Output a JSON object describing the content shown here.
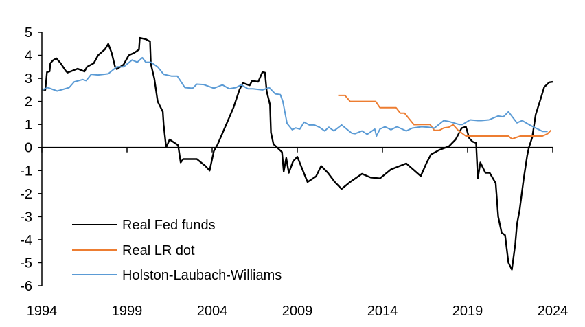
{
  "chart_data": {
    "type": "line",
    "title": "",
    "xlabel": "",
    "ylabel": "",
    "xlim": [
      1994,
      2024
    ],
    "ylim": [
      -6,
      5
    ],
    "x_ticks": [
      "1994",
      "1999",
      "2004",
      "2009",
      "2014",
      "2019",
      "2024"
    ],
    "y_ticks": [
      "5",
      "4",
      "3",
      "2",
      "1",
      "0",
      "-1",
      "-2",
      "-3",
      "-4",
      "-5",
      "-6"
    ],
    "grid": false,
    "legend_position": "bottom-left",
    "series": [
      {
        "name": "Real Fed funds",
        "color": "#000000",
        "points": [
          [
            1994.0,
            2.53
          ],
          [
            1994.2,
            2.5
          ],
          [
            1994.3,
            3.27
          ],
          [
            1994.45,
            3.3
          ],
          [
            1994.5,
            3.66
          ],
          [
            1994.65,
            3.78
          ],
          [
            1994.85,
            3.87
          ],
          [
            1995.1,
            3.66
          ],
          [
            1995.4,
            3.33
          ],
          [
            1995.5,
            3.25
          ],
          [
            1996.1,
            3.42
          ],
          [
            1996.5,
            3.3
          ],
          [
            1996.65,
            3.5
          ],
          [
            1997.05,
            3.66
          ],
          [
            1997.3,
            4.0
          ],
          [
            1997.7,
            4.26
          ],
          [
            1997.9,
            4.5
          ],
          [
            1998.1,
            4.1
          ],
          [
            1998.3,
            3.5
          ],
          [
            1998.4,
            3.4
          ],
          [
            1998.8,
            3.6
          ],
          [
            1999.1,
            4.0
          ],
          [
            1999.4,
            4.1
          ],
          [
            1999.7,
            4.25
          ],
          [
            1999.75,
            4.76
          ],
          [
            2000.1,
            4.7
          ],
          [
            2000.35,
            4.6
          ],
          [
            2000.4,
            3.63
          ],
          [
            2000.6,
            3.0
          ],
          [
            2000.8,
            2.0
          ],
          [
            2001.1,
            1.55
          ],
          [
            2001.15,
            1.0
          ],
          [
            2001.3,
            0.0
          ],
          [
            2001.5,
            0.35
          ],
          [
            2002.0,
            0.1
          ],
          [
            2002.15,
            -0.65
          ],
          [
            2002.3,
            -0.5
          ],
          [
            2003.1,
            -0.5
          ],
          [
            2003.6,
            -0.8
          ],
          [
            2003.85,
            -1.0
          ],
          [
            2004.1,
            -0.15
          ],
          [
            2004.3,
            0.1
          ],
          [
            2004.85,
            1.04
          ],
          [
            2005.25,
            1.73
          ],
          [
            2005.6,
            2.5
          ],
          [
            2005.8,
            2.8
          ],
          [
            2006.2,
            2.7
          ],
          [
            2006.35,
            2.9
          ],
          [
            2006.7,
            2.85
          ],
          [
            2006.95,
            3.27
          ],
          [
            2007.1,
            3.25
          ],
          [
            2007.2,
            2.44
          ],
          [
            2007.4,
            1.85
          ],
          [
            2007.45,
            0.65
          ],
          [
            2007.6,
            0.15
          ],
          [
            2008.1,
            -0.2
          ],
          [
            2008.2,
            -1.04
          ],
          [
            2008.35,
            -0.45
          ],
          [
            2008.5,
            -1.1
          ],
          [
            2008.75,
            -0.6
          ],
          [
            2009.0,
            -0.4
          ],
          [
            2009.3,
            -0.95
          ],
          [
            2009.6,
            -1.5
          ],
          [
            2010.1,
            -1.25
          ],
          [
            2010.4,
            -0.8
          ],
          [
            2010.8,
            -1.1
          ],
          [
            2011.2,
            -1.5
          ],
          [
            2011.6,
            -1.8
          ],
          [
            2012.1,
            -1.5
          ],
          [
            2012.8,
            -1.14
          ],
          [
            2013.3,
            -1.3
          ],
          [
            2013.85,
            -1.34
          ],
          [
            2014.5,
            -0.95
          ],
          [
            2015.4,
            -0.69
          ],
          [
            2016.25,
            -1.24
          ],
          [
            2016.6,
            -0.65
          ],
          [
            2016.85,
            -0.3
          ],
          [
            2017.35,
            -0.1
          ],
          [
            2017.9,
            0.05
          ],
          [
            2018.3,
            0.35
          ],
          [
            2018.65,
            0.84
          ],
          [
            2018.9,
            0.9
          ],
          [
            2019.1,
            0.4
          ],
          [
            2019.3,
            0.25
          ],
          [
            2019.5,
            0.2
          ],
          [
            2019.6,
            -1.34
          ],
          [
            2019.75,
            -0.65
          ],
          [
            2020.05,
            -1.1
          ],
          [
            2020.3,
            -1.1
          ],
          [
            2020.65,
            -1.55
          ],
          [
            2020.8,
            -3.0
          ],
          [
            2021.0,
            -3.7
          ],
          [
            2021.2,
            -3.8
          ],
          [
            2021.4,
            -5.0
          ],
          [
            2021.6,
            -5.3
          ],
          [
            2021.8,
            -4.2
          ],
          [
            2021.9,
            -3.33
          ],
          [
            2022.05,
            -2.75
          ],
          [
            2022.3,
            -1.34
          ],
          [
            2022.5,
            -0.35
          ],
          [
            2022.6,
            0.0
          ],
          [
            2022.8,
            0.45
          ],
          [
            2023.0,
            1.43
          ],
          [
            2023.3,
            2.13
          ],
          [
            2023.5,
            2.62
          ],
          [
            2023.8,
            2.83
          ],
          [
            2024.0,
            2.85
          ]
        ]
      },
      {
        "name": "Real LR dot",
        "color": "#ED7D31",
        "points": [
          [
            2011.4,
            2.26
          ],
          [
            2011.8,
            2.26
          ],
          [
            2012.1,
            2.0
          ],
          [
            2013.6,
            2.0
          ],
          [
            2013.85,
            1.73
          ],
          [
            2014.8,
            1.73
          ],
          [
            2015.05,
            1.49
          ],
          [
            2015.3,
            1.49
          ],
          [
            2015.85,
            0.99
          ],
          [
            2016.3,
            1.0
          ],
          [
            2016.8,
            1.0
          ],
          [
            2017.05,
            0.74
          ],
          [
            2017.35,
            0.75
          ],
          [
            2017.6,
            0.85
          ],
          [
            2017.9,
            0.88
          ],
          [
            2018.15,
            0.99
          ],
          [
            2018.45,
            0.74
          ],
          [
            2018.9,
            0.5
          ],
          [
            2021.4,
            0.5
          ],
          [
            2021.6,
            0.37
          ],
          [
            2022.1,
            0.5
          ],
          [
            2023.4,
            0.5
          ],
          [
            2023.7,
            0.6
          ],
          [
            2023.9,
            0.75
          ]
        ]
      },
      {
        "name": "Holston-Laubach-Williams",
        "color": "#5B9BD5",
        "points": [
          [
            1994.0,
            2.5
          ],
          [
            1994.35,
            2.6
          ],
          [
            1994.9,
            2.45
          ],
          [
            1995.6,
            2.6
          ],
          [
            1995.9,
            2.85
          ],
          [
            1996.4,
            2.95
          ],
          [
            1996.6,
            2.9
          ],
          [
            1996.9,
            3.18
          ],
          [
            1997.3,
            3.15
          ],
          [
            1997.9,
            3.2
          ],
          [
            1998.4,
            3.5
          ],
          [
            1998.8,
            3.5
          ],
          [
            1999.3,
            3.8
          ],
          [
            1999.6,
            3.7
          ],
          [
            1999.9,
            3.9
          ],
          [
            2000.1,
            3.7
          ],
          [
            2000.4,
            3.7
          ],
          [
            2000.8,
            3.5
          ],
          [
            2001.15,
            3.18
          ],
          [
            2001.6,
            3.1
          ],
          [
            2001.95,
            3.1
          ],
          [
            2002.4,
            2.6
          ],
          [
            2002.85,
            2.57
          ],
          [
            2003.1,
            2.75
          ],
          [
            2003.5,
            2.73
          ],
          [
            2004.1,
            2.57
          ],
          [
            2004.6,
            2.72
          ],
          [
            2005.0,
            2.55
          ],
          [
            2005.4,
            2.6
          ],
          [
            2005.7,
            2.72
          ],
          [
            2006.1,
            2.55
          ],
          [
            2006.4,
            2.55
          ],
          [
            2006.95,
            2.5
          ],
          [
            2007.35,
            2.6
          ],
          [
            2007.7,
            2.33
          ],
          [
            2008.0,
            2.3
          ],
          [
            2008.15,
            2.0
          ],
          [
            2008.4,
            1.04
          ],
          [
            2008.7,
            0.77
          ],
          [
            2008.9,
            0.85
          ],
          [
            2009.15,
            0.8
          ],
          [
            2009.4,
            1.1
          ],
          [
            2009.7,
            0.98
          ],
          [
            2010.0,
            0.98
          ],
          [
            2010.3,
            0.88
          ],
          [
            2010.6,
            0.72
          ],
          [
            2010.85,
            0.88
          ],
          [
            2011.15,
            0.72
          ],
          [
            2011.6,
            0.98
          ],
          [
            2012.2,
            0.62
          ],
          [
            2012.4,
            0.6
          ],
          [
            2012.8,
            0.72
          ],
          [
            2013.1,
            0.57
          ],
          [
            2013.55,
            0.8
          ],
          [
            2013.65,
            0.5
          ],
          [
            2013.85,
            0.8
          ],
          [
            2014.15,
            0.9
          ],
          [
            2014.5,
            0.77
          ],
          [
            2014.85,
            0.9
          ],
          [
            2015.4,
            0.72
          ],
          [
            2015.75,
            0.84
          ],
          [
            2016.3,
            0.9
          ],
          [
            2016.7,
            0.88
          ],
          [
            2017.05,
            0.84
          ],
          [
            2017.6,
            1.17
          ],
          [
            2017.9,
            1.13
          ],
          [
            2018.5,
            1.0
          ],
          [
            2018.7,
            1.0
          ],
          [
            2019.15,
            1.2
          ],
          [
            2019.6,
            1.17
          ],
          [
            2019.8,
            1.17
          ],
          [
            2020.25,
            1.2
          ],
          [
            2020.8,
            1.37
          ],
          [
            2021.1,
            1.33
          ],
          [
            2021.4,
            1.55
          ],
          [
            2021.9,
            1.07
          ],
          [
            2022.2,
            1.17
          ],
          [
            2022.6,
            1.0
          ],
          [
            2022.9,
            0.88
          ],
          [
            2023.4,
            0.7
          ],
          [
            2023.7,
            0.7
          ]
        ]
      }
    ]
  }
}
